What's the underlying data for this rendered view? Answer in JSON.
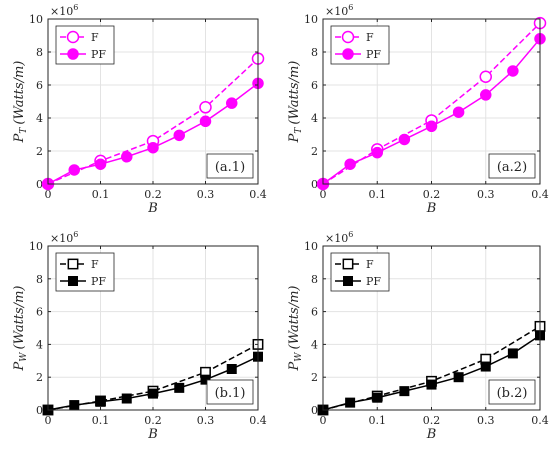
{
  "chart_data": [
    {
      "id": "a1",
      "type": "line",
      "panel_label": "(a.1)",
      "xlabel": "B",
      "ylabel_main": "P",
      "ylabel_sub": "T",
      "ylabel_units": "(Watts/m)",
      "y_multiplier": "×10",
      "y_exponent": "6",
      "xlim": [
        0,
        0.4
      ],
      "ylim": [
        0,
        10
      ],
      "x_ticks": [
        "0",
        "0.1",
        "0.2",
        "0.3",
        "0.4"
      ],
      "y_ticks": [
        "0",
        "2",
        "4",
        "6",
        "8",
        "10"
      ],
      "grid": true,
      "legend_position": "top-left",
      "marker_family": "circle",
      "color": "#ff00ff",
      "series": [
        {
          "name": "F",
          "style": "dashed",
          "fill": "none",
          "x": [
            0,
            0.1,
            0.2,
            0.3,
            0.4
          ],
          "y": [
            0,
            1.4,
            2.6,
            4.65,
            7.6
          ]
        },
        {
          "name": "PF",
          "style": "solid",
          "fill": "solid",
          "x": [
            0,
            0.05,
            0.1,
            0.15,
            0.2,
            0.25,
            0.3,
            0.35,
            0.4
          ],
          "y": [
            0,
            0.85,
            1.2,
            1.65,
            2.2,
            2.95,
            3.8,
            4.9,
            6.1
          ]
        }
      ]
    },
    {
      "id": "a2",
      "type": "line",
      "panel_label": "(a.2)",
      "xlabel": "B",
      "ylabel_main": "P",
      "ylabel_sub": "T",
      "ylabel_units": "(Watts/m)",
      "y_multiplier": "×10",
      "y_exponent": "6",
      "xlim": [
        0,
        0.4
      ],
      "ylim": [
        0,
        10
      ],
      "x_ticks": [
        "0",
        "0.1",
        "0.2",
        "0.3",
        "0.4"
      ],
      "y_ticks": [
        "0",
        "2",
        "4",
        "6",
        "8",
        "10"
      ],
      "grid": true,
      "legend_position": "top-left",
      "marker_family": "circle",
      "color": "#ff00ff",
      "series": [
        {
          "name": "F",
          "style": "dashed",
          "fill": "none",
          "x": [
            0,
            0.1,
            0.2,
            0.3,
            0.4
          ],
          "y": [
            0,
            2.1,
            3.85,
            6.5,
            9.75
          ]
        },
        {
          "name": "PF",
          "style": "solid",
          "fill": "solid",
          "x": [
            0,
            0.05,
            0.1,
            0.15,
            0.2,
            0.25,
            0.3,
            0.35,
            0.4
          ],
          "y": [
            0,
            1.2,
            1.9,
            2.7,
            3.5,
            4.35,
            5.4,
            6.85,
            8.8
          ]
        }
      ]
    },
    {
      "id": "b1",
      "type": "line",
      "panel_label": "(b.1)",
      "xlabel": "B",
      "ylabel_main": "P",
      "ylabel_sub": "W",
      "ylabel_units": "(Watts/m)",
      "y_multiplier": "×10",
      "y_exponent": "6",
      "xlim": [
        0,
        0.4
      ],
      "ylim": [
        0,
        10
      ],
      "x_ticks": [
        "0",
        "0.1",
        "0.2",
        "0.3",
        "0.4"
      ],
      "y_ticks": [
        "0",
        "2",
        "4",
        "6",
        "8",
        "10"
      ],
      "grid": true,
      "legend_position": "top-left",
      "marker_family": "square",
      "color": "#000000",
      "series": [
        {
          "name": "F",
          "style": "dashed",
          "fill": "none",
          "x": [
            0,
            0.1,
            0.2,
            0.3,
            0.4
          ],
          "y": [
            0,
            0.55,
            1.15,
            2.3,
            4.0
          ]
        },
        {
          "name": "PF",
          "style": "solid",
          "fill": "solid",
          "x": [
            0,
            0.05,
            0.1,
            0.15,
            0.2,
            0.25,
            0.3,
            0.35,
            0.4
          ],
          "y": [
            0,
            0.3,
            0.5,
            0.7,
            1.0,
            1.35,
            1.85,
            2.5,
            3.25
          ]
        }
      ]
    },
    {
      "id": "b2",
      "type": "line",
      "panel_label": "(b.2)",
      "xlabel": "B",
      "ylabel_main": "P",
      "ylabel_sub": "W",
      "ylabel_units": "(Watts/m)",
      "y_multiplier": "×10",
      "y_exponent": "6",
      "xlim": [
        0,
        0.4
      ],
      "ylim": [
        0,
        10
      ],
      "x_ticks": [
        "0",
        "0.1",
        "0.2",
        "0.3",
        "0.4"
      ],
      "y_ticks": [
        "0",
        "2",
        "4",
        "6",
        "8",
        "10"
      ],
      "grid": true,
      "legend_position": "top-left",
      "marker_family": "square",
      "color": "#000000",
      "series": [
        {
          "name": "F",
          "style": "dashed",
          "fill": "none",
          "x": [
            0,
            0.1,
            0.2,
            0.3,
            0.4
          ],
          "y": [
            0,
            0.85,
            1.75,
            3.1,
            5.1
          ]
        },
        {
          "name": "PF",
          "style": "solid",
          "fill": "solid",
          "x": [
            0,
            0.05,
            0.1,
            0.15,
            0.2,
            0.25,
            0.3,
            0.35,
            0.4
          ],
          "y": [
            0,
            0.45,
            0.75,
            1.15,
            1.55,
            2.0,
            2.65,
            3.45,
            4.55
          ]
        }
      ]
    }
  ]
}
